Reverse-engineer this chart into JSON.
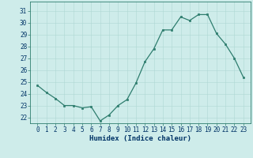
{
  "x": [
    0,
    1,
    2,
    3,
    4,
    5,
    6,
    7,
    8,
    9,
    10,
    11,
    12,
    13,
    14,
    15,
    16,
    17,
    18,
    19,
    20,
    21,
    22,
    23
  ],
  "y": [
    24.7,
    24.1,
    23.6,
    23.0,
    23.0,
    22.8,
    22.9,
    21.7,
    22.2,
    23.0,
    23.5,
    24.9,
    26.7,
    27.8,
    29.4,
    29.4,
    30.5,
    30.2,
    30.7,
    30.7,
    29.1,
    28.2,
    27.0,
    25.4
  ],
  "line_color": "#2e7d6e",
  "marker": "s",
  "markersize": 1.8,
  "linewidth": 0.9,
  "bg_color": "#ceecea",
  "grid_color": "#afd8d4",
  "xlabel": "Humidex (Indice chaleur)",
  "ylim": [
    21.5,
    31.8
  ],
  "yticks": [
    22,
    23,
    24,
    25,
    26,
    27,
    28,
    29,
    30,
    31
  ],
  "xticks": [
    0,
    1,
    2,
    3,
    4,
    5,
    6,
    7,
    8,
    9,
    10,
    11,
    12,
    13,
    14,
    15,
    16,
    17,
    18,
    19,
    20,
    21,
    22,
    23
  ],
  "tick_fontsize": 5.5,
  "xlabel_fontsize": 6.5,
  "xlabel_color": "#003366",
  "spine_color": "#2e7d6e",
  "grid_linewidth": 0.4
}
